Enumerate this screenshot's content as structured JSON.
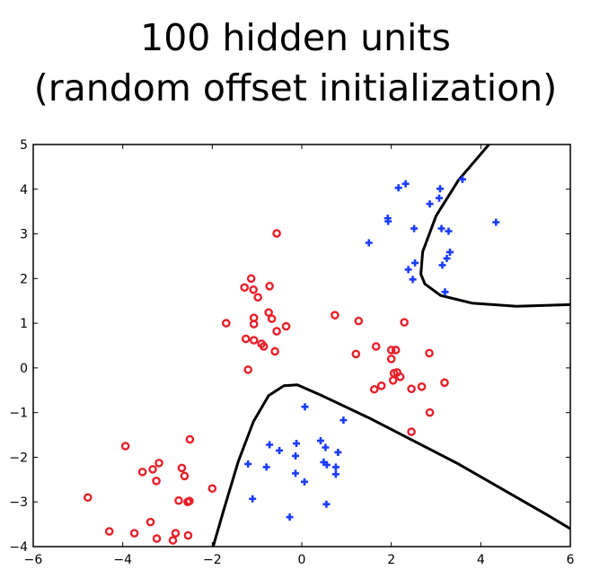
{
  "title_line1": "100 hidden units",
  "title_line2": "(random offset initialization)",
  "chart_data": {
    "type": "scatter",
    "title": "100 hidden units (random offset initialization)",
    "xlim": [
      -6,
      6
    ],
    "ylim": [
      -4,
      5
    ],
    "xticks": [
      "−6",
      "−4",
      "−2",
      "0",
      "2",
      "4",
      "6"
    ],
    "yticks": [
      "−4",
      "−3",
      "−2",
      "−1",
      "0",
      "1",
      "2",
      "3",
      "4",
      "5"
    ],
    "xtick_values": [
      -6,
      -4,
      -2,
      0,
      2,
      4,
      6
    ],
    "ytick_values": [
      -4,
      -3,
      -2,
      -1,
      0,
      1,
      2,
      3,
      4,
      5
    ],
    "grid": false,
    "series": [
      {
        "marker": "circle",
        "color": "#e8202a",
        "points": [
          [
            -0.56,
            3.01
          ],
          [
            -1.13,
            2.0
          ],
          [
            -1.28,
            1.8
          ],
          [
            -0.72,
            1.83
          ],
          [
            -1.08,
            1.75
          ],
          [
            -0.98,
            1.58
          ],
          [
            -1.69,
            1.0
          ],
          [
            -1.07,
            1.12
          ],
          [
            -0.74,
            1.24
          ],
          [
            -0.67,
            1.1
          ],
          [
            -1.07,
            0.98
          ],
          [
            -0.35,
            0.93
          ],
          [
            -0.56,
            0.82
          ],
          [
            -1.25,
            0.65
          ],
          [
            -1.07,
            0.62
          ],
          [
            -0.9,
            0.54
          ],
          [
            -0.85,
            0.48
          ],
          [
            -0.6,
            0.37
          ],
          [
            -1.2,
            -0.04
          ],
          [
            0.74,
            1.18
          ],
          [
            1.27,
            1.05
          ],
          [
            2.29,
            1.02
          ],
          [
            1.66,
            0.48
          ],
          [
            2.0,
            0.4
          ],
          [
            2.1,
            0.4
          ],
          [
            1.21,
            0.31
          ],
          [
            2.85,
            0.33
          ],
          [
            2.0,
            0.2
          ],
          [
            2.13,
            -0.1
          ],
          [
            2.06,
            -0.12
          ],
          [
            2.2,
            -0.2
          ],
          [
            2.04,
            -0.28
          ],
          [
            3.19,
            -0.33
          ],
          [
            1.78,
            -0.4
          ],
          [
            2.68,
            -0.42
          ],
          [
            1.62,
            -0.48
          ],
          [
            2.45,
            -0.47
          ],
          [
            2.86,
            -1.0
          ],
          [
            2.45,
            -1.43
          ],
          [
            -2.5,
            -1.6
          ],
          [
            -3.94,
            -1.75
          ],
          [
            -3.19,
            -2.13
          ],
          [
            -3.33,
            -2.27
          ],
          [
            -3.56,
            -2.33
          ],
          [
            -2.68,
            -2.24
          ],
          [
            -3.25,
            -2.53
          ],
          [
            -2.62,
            -2.42
          ],
          [
            -2.0,
            -2.7
          ],
          [
            -4.78,
            -2.9
          ],
          [
            -2.75,
            -2.97
          ],
          [
            -2.51,
            -2.98
          ],
          [
            -2.55,
            -3.0
          ],
          [
            -3.38,
            -3.45
          ],
          [
            -4.3,
            -3.66
          ],
          [
            -3.74,
            -3.7
          ],
          [
            -2.82,
            -3.7
          ],
          [
            -2.54,
            -3.75
          ],
          [
            -3.24,
            -3.82
          ],
          [
            -2.88,
            -3.86
          ]
        ]
      },
      {
        "marker": "plus",
        "color": "#1a3cff",
        "points": [
          [
            3.59,
            4.22
          ],
          [
            2.32,
            4.12
          ],
          [
            2.16,
            4.03
          ],
          [
            3.09,
            4.01
          ],
          [
            3.07,
            3.8
          ],
          [
            2.86,
            3.67
          ],
          [
            1.92,
            3.35
          ],
          [
            1.93,
            3.28
          ],
          [
            4.34,
            3.26
          ],
          [
            2.51,
            3.12
          ],
          [
            3.12,
            3.12
          ],
          [
            3.28,
            3.06
          ],
          [
            1.5,
            2.8
          ],
          [
            2.53,
            2.35
          ],
          [
            3.31,
            2.59
          ],
          [
            3.24,
            2.45
          ],
          [
            2.38,
            2.2
          ],
          [
            3.14,
            2.3
          ],
          [
            2.48,
            1.98
          ],
          [
            3.2,
            1.7
          ],
          [
            0.07,
            -0.87
          ],
          [
            0.93,
            -1.17
          ],
          [
            -0.72,
            -1.72
          ],
          [
            0.42,
            -1.63
          ],
          [
            0.53,
            -1.78
          ],
          [
            -0.5,
            -1.85
          ],
          [
            0.81,
            -1.89
          ],
          [
            -0.12,
            -1.69
          ],
          [
            -0.14,
            -1.97
          ],
          [
            0.49,
            -2.11
          ],
          [
            0.56,
            -2.17
          ],
          [
            0.76,
            -2.22
          ],
          [
            -0.79,
            -2.22
          ],
          [
            -1.2,
            -2.15
          ],
          [
            -0.14,
            -2.36
          ],
          [
            0.76,
            -2.38
          ],
          [
            0.06,
            -2.55
          ],
          [
            -1.1,
            -2.93
          ],
          [
            0.55,
            -3.05
          ],
          [
            -0.27,
            -3.34
          ]
        ]
      }
    ],
    "decision_boundaries": [
      [
        [
          4.18,
          5.0
        ],
        [
          3.5,
          4.2
        ],
        [
          3.0,
          3.4
        ],
        [
          2.7,
          2.6
        ],
        [
          2.66,
          2.1
        ],
        [
          2.75,
          1.88
        ],
        [
          3.1,
          1.62
        ],
        [
          3.8,
          1.45
        ],
        [
          4.8,
          1.38
        ],
        [
          6.4,
          1.43
        ],
        [
          8.0,
          1.56
        ]
      ],
      [
        [
          -1.98,
          -4.0
        ],
        [
          -1.75,
          -3.2
        ],
        [
          -1.42,
          -2.1
        ],
        [
          -1.08,
          -1.2
        ],
        [
          -0.74,
          -0.62
        ],
        [
          -0.4,
          -0.4
        ],
        [
          -0.1,
          -0.38
        ],
        [
          0.45,
          -0.62
        ],
        [
          1.5,
          -1.12
        ],
        [
          3.5,
          -2.15
        ],
        [
          5.5,
          -3.3
        ],
        [
          6.0,
          -3.6
        ]
      ]
    ]
  }
}
